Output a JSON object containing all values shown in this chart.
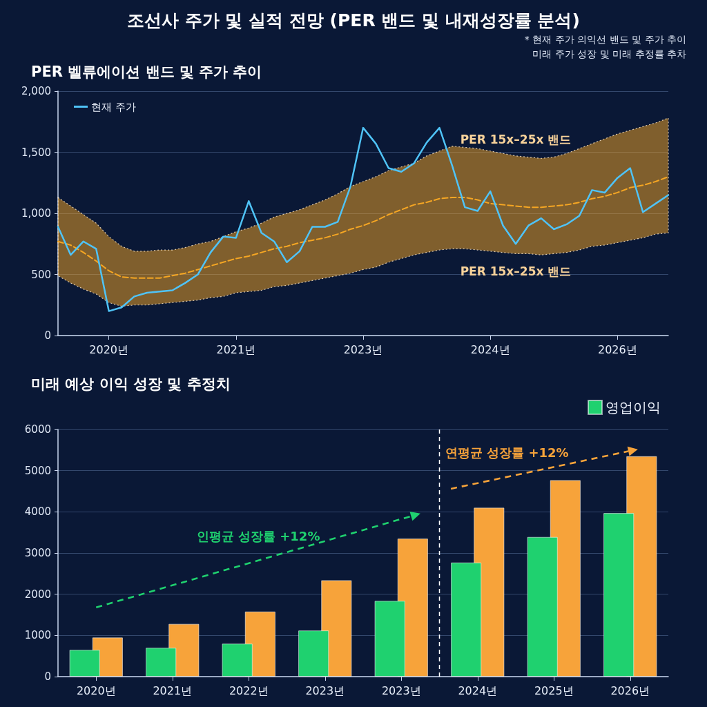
{
  "chart_data": [
    {
      "type": "line",
      "title": "조선사 주가 및 실적 전망 (PER 밴드 및 내재성장률 분석)",
      "subtitle": "PER 벨류에이션 밴드 및 주가 추이",
      "categories": [
        null,
        null,
        null,
        null,
        "2020년",
        null,
        null,
        null,
        null,
        null,
        null,
        null,
        null,
        null,
        "2021년",
        null,
        null,
        null,
        null,
        null,
        null,
        null,
        null,
        null,
        "2023년",
        null,
        null,
        null,
        null,
        null,
        null,
        null,
        null,
        null,
        "2024년",
        null,
        null,
        null,
        null,
        null,
        null,
        null,
        null,
        null,
        "2026년",
        null,
        null,
        null,
        null
      ],
      "series": [
        {
          "name": "현재 주가",
          "color": "#4fc3f7",
          "values": [
            890,
            660,
            770,
            710,
            200,
            230,
            320,
            350,
            360,
            370,
            430,
            500,
            680,
            810,
            800,
            1100,
            840,
            770,
            600,
            690,
            890,
            890,
            930,
            1220,
            1700,
            1570,
            1370,
            1340,
            1410,
            1580,
            1700,
            1390,
            1050,
            1020,
            1180,
            900,
            750,
            900,
            960,
            870,
            910,
            980,
            1190,
            1170,
            1290,
            1370,
            1010,
            1080,
            1150
          ]
        },
        {
          "color": "#f5a623",
          "line_style": "dashed",
          "values": [
            770,
            740,
            680,
            610,
            530,
            480,
            470,
            470,
            470,
            490,
            510,
            540,
            570,
            600,
            630,
            650,
            680,
            710,
            730,
            760,
            780,
            800,
            830,
            870,
            900,
            940,
            990,
            1030,
            1070,
            1090,
            1120,
            1130,
            1130,
            1110,
            1080,
            1070,
            1060,
            1050,
            1050,
            1060,
            1070,
            1090,
            1120,
            1140,
            1170,
            1210,
            1230,
            1260,
            1300
          ],
          "upper": [
            1130,
            1060,
            990,
            920,
            810,
            730,
            690,
            690,
            700,
            700,
            720,
            750,
            770,
            810,
            850,
            880,
            920,
            970,
            1000,
            1030,
            1070,
            1110,
            1160,
            1220,
            1260,
            1300,
            1350,
            1380,
            1410,
            1470,
            1510,
            1550,
            1540,
            1530,
            1510,
            1490,
            1470,
            1460,
            1450,
            1460,
            1490,
            1530,
            1570,
            1610,
            1650,
            1680,
            1710,
            1740,
            1780
          ],
          "lower": [
            490,
            430,
            380,
            340,
            270,
            240,
            250,
            250,
            260,
            270,
            280,
            290,
            310,
            320,
            350,
            360,
            370,
            400,
            410,
            430,
            450,
            470,
            490,
            510,
            540,
            560,
            600,
            630,
            660,
            680,
            700,
            710,
            710,
            700,
            690,
            680,
            670,
            670,
            660,
            670,
            680,
            700,
            730,
            740,
            760,
            780,
            800,
            830,
            840
          ]
        }
      ],
      "ylim": [
        0,
        2000
      ],
      "yticks": [
        0,
        500,
        {
          "value": 1000,
          "label": "1,000"
        },
        {
          "value": 1500,
          "label": "1,500"
        },
        {
          "value": 2000,
          "label": "2,000"
        }
      ],
      "grid": "y",
      "legend": "top left",
      "marker": "none",
      "annotations": [
        "* 현재 주가 의익선 밴드 및 주가 추이",
        "미래 주가 성장 및 미래 추정률 추차",
        "PER 15x–25x 밴드",
        "PER 15x–25x 밴드"
      ]
    },
    {
      "type": "bar",
      "title": "미래 예상 이익 성장 및 추정치",
      "categories": [
        "2020년",
        "2021년",
        "2022년",
        "2023년",
        "2023년",
        "2024년",
        "2025년",
        "2026년"
      ],
      "series": [
        {
          "name": "영업이익",
          "color": "#1fd16f",
          "values": [
            650,
            700,
            800,
            1120,
            1840,
            2770,
            3390,
            3970
          ]
        },
        {
          "color": "#f7a33a",
          "values": [
            950,
            1280,
            1580,
            2340,
            3350,
            4100,
            4770,
            5350
          ]
        }
      ],
      "ylim": [
        0,
        6000
      ],
      "yticks": [
        0,
        1000,
        2000,
        3000,
        4000,
        5000,
        6000
      ],
      "grid": "y",
      "legend": "top right",
      "ref_lines": [
        {
          "axis": "x",
          "value": "2024년",
          "color": "#ffffff",
          "line_style": "dashed"
        }
      ],
      "annotations": [
        "인평균 성장률 +12%",
        "연평균 성장률 +12%"
      ]
    }
  ]
}
